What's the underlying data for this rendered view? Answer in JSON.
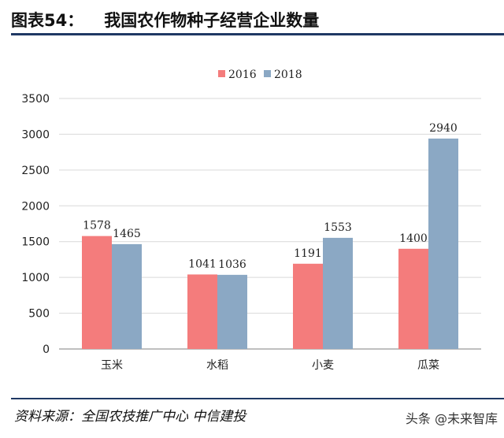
{
  "header": {
    "label": "图表54：",
    "title": "我国农作物种子经营企业数量"
  },
  "source": "资料来源：全国农技推广中心  中信建投",
  "watermark": "头条 @未来智库",
  "colors": {
    "s2016": "#f47c7c",
    "s2018": "#8ba8c4",
    "rule": "#1f3864",
    "grid": "#d9d9d9",
    "axis": "#7f7f7f"
  },
  "chart_data": {
    "type": "bar",
    "categories": [
      "玉米",
      "水稻",
      "小麦",
      "瓜菜"
    ],
    "series": [
      {
        "name": "2016",
        "values": [
          1578,
          1041,
          1191,
          1400
        ]
      },
      {
        "name": "2018",
        "values": [
          1465,
          1036,
          1553,
          2940
        ]
      }
    ],
    "ylim": [
      0,
      3500
    ],
    "yticks": [
      "0",
      "500",
      "1000",
      "1500",
      "2000",
      "2500",
      "3000",
      "3500"
    ],
    "grid": true,
    "legend": "top-center",
    "data_labels": true
  }
}
